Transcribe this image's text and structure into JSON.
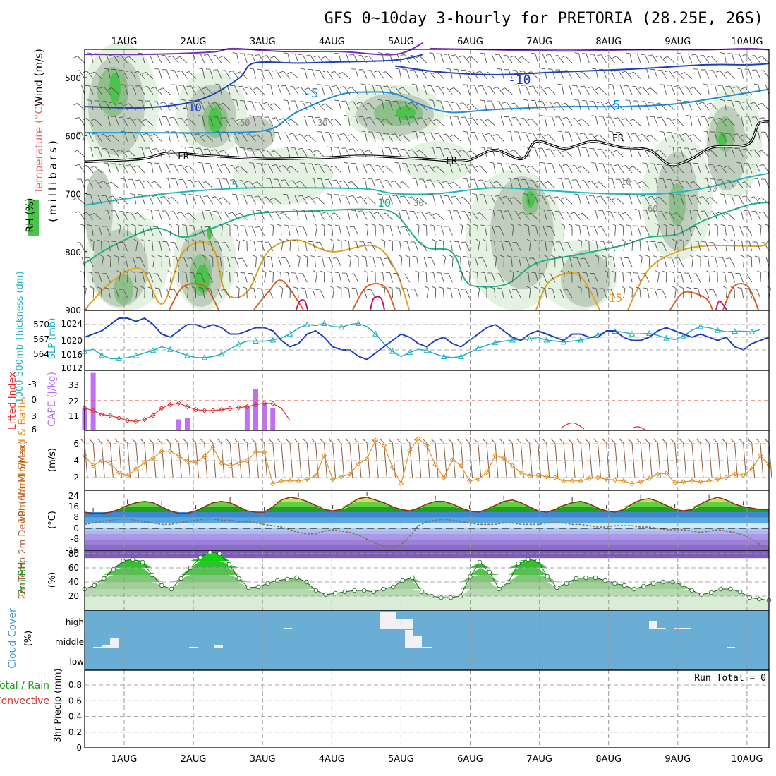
{
  "title": "GFS 0~10day 3-hourly for PRETORIA (28.25E, 26S)",
  "date_labels": [
    "1AUG",
    "2AUG",
    "3AUG",
    "4AUG",
    "5AUG",
    "6AUG",
    "7AUG",
    "8AUG",
    "9AUG",
    "10AUG"
  ],
  "colors": {
    "temp_500": "#7a2db5",
    "temp_m10": "#1d3fbf",
    "temp_m5": "#1e90d8",
    "freezing": "#000000",
    "temp_5": "#20b8c0",
    "temp_10": "#1fb08a",
    "temp_15": "#e0a020",
    "temp_20": "#e06020",
    "temp_25": "#d0107a",
    "slp": "#1d3fbf",
    "thickness": "#20b0c0",
    "cape": "#c070f0",
    "lifted": "#e03030",
    "wind_speed": "#e09020",
    "barb": "#8b5a3c",
    "rh": "#1a8a1a",
    "cloud": "#6aaed6",
    "cloud_fill": "#f0f0f5"
  },
  "panels": {
    "upper": {
      "ylabels": [
        "Wind (m/s)",
        "Temperature (°C)",
        "RH (%)"
      ],
      "ylabel_right": "(millibars)",
      "ticks": [
        "500",
        "600",
        "700",
        "800",
        "900"
      ],
      "contour_labels": {
        "m10a": "-10",
        "m10b": "-10",
        "m5a": "-5",
        "m5b": "-5",
        "fr1": "FR",
        "fr2": "FR",
        "fr3": "FR",
        "c5": "5",
        "c10": "10",
        "c15": "15",
        "rh50a": "50",
        "rh30a": "30",
        "rh30b": "30",
        "rh10": "10",
        "rh50b": "50",
        "rh60": "60"
      }
    },
    "slp": {
      "ylabel_thick": "1000-500mb Thickness (dm)",
      "ylabel_slp": "SLP (mb)",
      "ticks_thick": [
        "570",
        "567",
        "564"
      ],
      "ticks_slp": [
        "1024",
        "1020",
        "1016",
        "1012"
      ]
    },
    "cape": {
      "ylabel_li": "Lifted Index",
      "ylabel_cape": "CAPE (J/kg)",
      "ticks_li": [
        "-3",
        "0",
        "3",
        "6"
      ],
      "ticks_cape": [
        "33",
        "22",
        "11"
      ]
    },
    "wind": {
      "ylabel": "10m Wind Speed & Barbs",
      "unit": "(m/s)",
      "ticks": [
        "6",
        "4",
        "2"
      ]
    },
    "temp": {
      "ylabel": "2m Temp 2m DewPt (6hr Min/Max)",
      "unit": "(°C)",
      "ticks": [
        "24",
        "16",
        "8",
        "0",
        "-8",
        "-16"
      ]
    },
    "rh": {
      "ylabel": "2m RH",
      "unit": "(%)",
      "ticks": [
        "80",
        "60",
        "40",
        "20"
      ]
    },
    "cloud": {
      "ylabel": "Cloud Cover",
      "unit": "(%)",
      "levels": [
        "high",
        "middle",
        "low"
      ]
    },
    "precip": {
      "ylabel_total": "Total / Rain",
      "ylabel_conv": "Convective",
      "ylabel_axis": "3hr Precip (mm)",
      "ticks": [
        "0.8",
        "0.6",
        "0.4",
        "0.2",
        "0"
      ],
      "run_total": "Run Total = 0"
    }
  },
  "chart_data": {
    "type": "line",
    "time_step_hours": 3,
    "x_start": "31JUL 12UTC",
    "x_end": "10AUG 06UTC",
    "slp_mb": [
      1020,
      1021,
      1022,
      1024,
      1026,
      1026,
      1025,
      1026,
      1024,
      1021,
      1020,
      1022,
      1024,
      1024,
      1023,
      1024,
      1023,
      1021,
      1021,
      1022,
      1023,
      1023,
      1022,
      1019,
      1017,
      1018,
      1021,
      1022,
      1020,
      1017,
      1016,
      1016,
      1014,
      1013,
      1015,
      1017,
      1019,
      1021,
      1020,
      1018,
      1017,
      1019,
      1020,
      1018,
      1017,
      1019,
      1021,
      1023,
      1024,
      1022,
      1020,
      1019,
      1021,
      1022,
      1021,
      1020,
      1019,
      1021,
      1021,
      1020,
      1020,
      1022,
      1022,
      1020,
      1019,
      1019,
      1020,
      1022,
      1023,
      1022,
      1021,
      1020,
      1021,
      1020,
      1019,
      1020,
      1017,
      1016,
      1018,
      1019,
      1020
    ],
    "thickness_dm": [
      564.8,
      565.2,
      564.1,
      563.4,
      563.4,
      563.6,
      564.0,
      564.5,
      565.0,
      565.7,
      565.2,
      564.6,
      564.0,
      563.6,
      563.6,
      563.8,
      564.3,
      565.3,
      566.2,
      566.8,
      566.8,
      566.8,
      567.0,
      567.4,
      568.2,
      569.3,
      570.0,
      569.8,
      570.2,
      569.6,
      569.5,
      570.0,
      570.2,
      569.6,
      568.2,
      566.3,
      564.8,
      563.8,
      564.6,
      565.2,
      565.0,
      564.3,
      563.8,
      563.6,
      563.8,
      564.6,
      565.4,
      566.0,
      566.5,
      566.8,
      567.0,
      567.1,
      567.2,
      567.5,
      567.0,
      566.8,
      566.6,
      566.8,
      567.0,
      567.4,
      568.0,
      568.6,
      568.7,
      568.5,
      568.2,
      568.2,
      568.3,
      567.9,
      567.4,
      567.1,
      567.8,
      568.9,
      569.6,
      569.4,
      568.9,
      568.6,
      568.7,
      568.7,
      568.6,
      569.0
    ],
    "cape_jkg": [
      16,
      42,
      0,
      0,
      0,
      0,
      0,
      0,
      0,
      0,
      0,
      8,
      9,
      0,
      0,
      0,
      0,
      0,
      0,
      18,
      30,
      20,
      16,
      0
    ],
    "lifted_index": [
      1.5,
      2.0,
      2.8,
      3.0,
      3.5,
      4.0,
      4.2,
      3.8,
      3.0,
      1.5,
      0.8,
      0.5,
      1.2,
      1.8,
      2.0,
      2.0,
      1.8,
      1.6,
      1.4,
      1.2,
      0.8,
      0.5,
      0.6,
      1.5,
      4.0
    ],
    "wind_speed_ms": [
      4.6,
      3.4,
      4.0,
      3.7,
      2.6,
      2.2,
      3.0,
      3.8,
      4.3,
      5.1,
      5.1,
      4.6,
      3.9,
      3.8,
      4.5,
      5.6,
      3.7,
      3.4,
      3.7,
      4.0,
      5.0,
      5.0,
      1.3,
      1.6,
      1.6,
      1.6,
      1.8,
      2.2,
      4.6,
      1.8,
      2.1,
      2.4,
      3.6,
      4.2,
      6.4,
      5.8,
      3.2,
      1.3,
      5.2,
      6.6,
      5.8,
      3.5,
      2.0,
      4.1,
      3.4,
      1.6,
      1.8,
      2.6,
      4.6,
      4.3,
      3.4,
      2.6,
      2.2,
      2.3,
      2.1,
      2.0,
      1.6,
      1.6,
      1.6,
      1.9,
      2.0,
      1.8,
      1.7,
      1.6,
      1.3,
      1.5,
      1.9,
      2.4,
      2.5,
      1.4,
      1.5,
      1.6,
      1.5,
      1.6,
      1.8,
      2.0,
      2.4,
      2.3,
      3.0,
      4.6,
      3.5
    ],
    "temp_2m_c": [
      12,
      11,
      11,
      12,
      14,
      17,
      19,
      20,
      19,
      16,
      13,
      11,
      11,
      13,
      16,
      19,
      20,
      19,
      16,
      13,
      12,
      12,
      16,
      21,
      23,
      22,
      20,
      17,
      14,
      13,
      14,
      18,
      22,
      23,
      21,
      19,
      16,
      14,
      13,
      15,
      18,
      20,
      20,
      18,
      15,
      13,
      12,
      14,
      17,
      20,
      21,
      19,
      16,
      13,
      12,
      14,
      17,
      19,
      20,
      18,
      15,
      13,
      12,
      14,
      18,
      21,
      22,
      20,
      17,
      14,
      13,
      14,
      18,
      21,
      23,
      21,
      18,
      16,
      15,
      14,
      14
    ],
    "dewpt_2m_c": [
      3,
      4,
      5,
      6,
      7,
      7,
      6,
      5,
      4,
      3,
      3,
      4,
      5,
      6,
      7,
      7,
      6,
      6,
      5,
      5,
      4,
      3,
      2,
      1,
      -1,
      -3,
      -4,
      -4,
      -2,
      -1,
      -2,
      -3,
      -5,
      -8,
      -11,
      -13,
      -14,
      -12,
      -6,
      2,
      5,
      6,
      7,
      6,
      5,
      4,
      3,
      3,
      3,
      4,
      4,
      3,
      3,
      3,
      4,
      4,
      4,
      3,
      3,
      2,
      1,
      1,
      2,
      2,
      2,
      1,
      1,
      0,
      -1,
      -1,
      -1,
      -2,
      -3,
      -2,
      -1,
      -2,
      -3,
      -5,
      -8,
      -12,
      -17
    ],
    "rh_2m_pct": [
      30,
      35,
      45,
      58,
      70,
      72,
      68,
      50,
      35,
      30,
      45,
      60,
      75,
      82,
      80,
      65,
      45,
      32,
      33,
      38,
      42,
      44,
      46,
      40,
      28,
      22,
      24,
      26,
      28,
      28,
      26,
      30,
      33,
      42,
      46,
      26,
      20,
      18,
      18,
      20,
      48,
      68,
      54,
      30,
      40,
      66,
      72,
      70,
      48,
      32,
      38,
      45,
      46,
      46,
      42,
      38,
      35,
      30,
      34,
      38,
      40,
      40,
      36,
      28,
      22,
      25,
      30,
      30,
      26,
      18,
      16,
      14
    ]
  }
}
